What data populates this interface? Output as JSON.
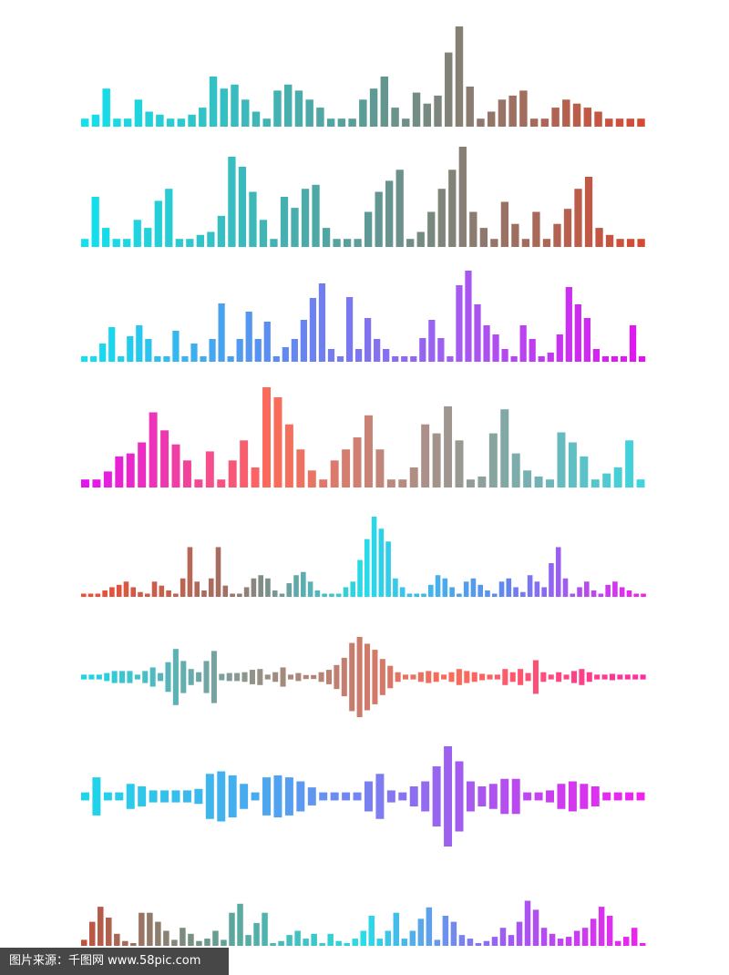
{
  "watermark_text": "图片来源：千图网 www.58pic.com",
  "waveforms": [
    {
      "style": "bottom",
      "colors": [
        "#11e1ee",
        "#5b9c97",
        "#d64a33"
      ],
      "levels": [
        0.08,
        0.12,
        0.38,
        0.08,
        0.08,
        0.27,
        0.15,
        0.12,
        0.08,
        0.08,
        0.12,
        0.19,
        0.5,
        0.38,
        0.42,
        0.27,
        0.15,
        0.08,
        0.36,
        0.42,
        0.36,
        0.27,
        0.19,
        0.08,
        0.08,
        0.08,
        0.27,
        0.38,
        0.5,
        0.19,
        0.08,
        0.34,
        0.23,
        0.31,
        0.74,
        1.0,
        0.4,
        0.08,
        0.15,
        0.27,
        0.31,
        0.36,
        0.08,
        0.08,
        0.19,
        0.27,
        0.23,
        0.19,
        0.15,
        0.08,
        0.08,
        0.08,
        0.08
      ]
    },
    {
      "style": "bottom",
      "colors": [
        "#11e1ee",
        "#5b9c97",
        "#d64a33"
      ],
      "levels": [
        0.08,
        0.5,
        0.19,
        0.08,
        0.08,
        0.27,
        0.19,
        0.46,
        0.58,
        0.08,
        0.08,
        0.12,
        0.15,
        0.31,
        0.9,
        0.8,
        0.55,
        0.27,
        0.08,
        0.5,
        0.39,
        0.58,
        0.62,
        0.19,
        0.08,
        0.08,
        0.08,
        0.35,
        0.55,
        0.66,
        0.77,
        0.08,
        0.15,
        0.35,
        0.58,
        0.77,
        1.0,
        0.35,
        0.19,
        0.08,
        0.45,
        0.23,
        0.08,
        0.35,
        0.08,
        0.23,
        0.38,
        0.58,
        0.7,
        0.19,
        0.12,
        0.08,
        0.08,
        0.08
      ]
    },
    {
      "style": "bottom",
      "colors": [
        "#11e1ee",
        "#5b8df0",
        "#a35cf0",
        "#e313f0"
      ],
      "levels": [
        0.06,
        0.06,
        0.2,
        0.38,
        0.06,
        0.28,
        0.4,
        0.25,
        0.06,
        0.06,
        0.34,
        0.06,
        0.2,
        0.06,
        0.25,
        0.64,
        0.06,
        0.25,
        0.55,
        0.25,
        0.44,
        0.06,
        0.16,
        0.25,
        0.46,
        0.7,
        0.86,
        0.14,
        0.06,
        0.71,
        0.14,
        0.48,
        0.25,
        0.14,
        0.06,
        0.06,
        0.06,
        0.26,
        0.46,
        0.26,
        0.06,
        0.84,
        1.0,
        0.63,
        0.4,
        0.3,
        0.14,
        0.06,
        0.4,
        0.25,
        0.06,
        0.1,
        0.3,
        0.82,
        0.63,
        0.48,
        0.14,
        0.06,
        0.06,
        0.06,
        0.4,
        0.06
      ]
    },
    {
      "style": "bottom",
      "colors": [
        "#e313f0",
        "#fd6a58",
        "#9a9891",
        "#3ed5e0"
      ],
      "levels": [
        0.08,
        0.08,
        0.16,
        0.31,
        0.34,
        0.45,
        0.75,
        0.57,
        0.43,
        0.27,
        0.08,
        0.36,
        0.08,
        0.27,
        0.47,
        0.2,
        1.0,
        0.9,
        0.63,
        0.38,
        0.17,
        0.08,
        0.27,
        0.38,
        0.5,
        0.72,
        0.38,
        0.08,
        0.08,
        0.2,
        0.63,
        0.54,
        0.81,
        0.47,
        0.08,
        0.11,
        0.54,
        0.78,
        0.34,
        0.17,
        0.11,
        0.08,
        0.55,
        0.45,
        0.31,
        0.08,
        0.14,
        0.2,
        0.47,
        0.08
      ]
    },
    {
      "style": "bottom",
      "colors": [
        "#f24c33",
        "#a36f62",
        "#28dce8",
        "#6088f0",
        "#f022ee"
      ],
      "levels": [
        0.04,
        0.04,
        0.04,
        0.08,
        0.12,
        0.15,
        0.19,
        0.12,
        0.06,
        0.04,
        0.19,
        0.14,
        0.08,
        0.04,
        0.23,
        0.62,
        0.19,
        0.08,
        0.23,
        0.62,
        0.14,
        0.04,
        0.04,
        0.12,
        0.23,
        0.27,
        0.23,
        0.08,
        0.04,
        0.17,
        0.27,
        0.31,
        0.19,
        0.08,
        0.04,
        0.04,
        0.04,
        0.12,
        0.19,
        0.46,
        0.72,
        1.0,
        0.85,
        0.69,
        0.23,
        0.12,
        0.04,
        0.04,
        0.04,
        0.15,
        0.27,
        0.23,
        0.12,
        0.04,
        0.19,
        0.23,
        0.15,
        0.08,
        0.04,
        0.19,
        0.23,
        0.12,
        0.06,
        0.27,
        0.19,
        0.12,
        0.42,
        0.62,
        0.23,
        0.04,
        0.12,
        0.19,
        0.08,
        0.04,
        0.15,
        0.19,
        0.12,
        0.08,
        0.04,
        0.04
      ]
    },
    {
      "style": "center",
      "colors": [
        "#1ed6e8",
        "#9d8c7f",
        "#fd6a58",
        "#ff2ca0"
      ],
      "levels": [
        0.06,
        0.06,
        0.06,
        0.1,
        0.15,
        0.15,
        0.15,
        0.06,
        0.15,
        0.24,
        0.1,
        0.37,
        0.7,
        0.4,
        0.2,
        0.12,
        0.4,
        0.65,
        0.08,
        0.1,
        0.1,
        0.12,
        0.18,
        0.2,
        0.06,
        0.12,
        0.24,
        0.06,
        0.1,
        0.05,
        0.05,
        0.12,
        0.18,
        0.3,
        0.48,
        0.85,
        1.0,
        0.83,
        0.68,
        0.45,
        0.28,
        0.12,
        0.06,
        0.06,
        0.12,
        0.15,
        0.12,
        0.06,
        0.12,
        0.2,
        0.15,
        0.12,
        0.08,
        0.06,
        0.06,
        0.2,
        0.12,
        0.2,
        0.1,
        0.42,
        0.12,
        0.06,
        0.12,
        0.06,
        0.15,
        0.2,
        0.12,
        0.06,
        0.06,
        0.08,
        0.06,
        0.06,
        0.06,
        0.06
      ]
    },
    {
      "style": "center",
      "colors": [
        "#1ed6e8",
        "#4ea5f0",
        "#a05ef0",
        "#f022ee"
      ],
      "levels": [
        0.08,
        0.38,
        0.08,
        0.08,
        0.25,
        0.2,
        0.12,
        0.12,
        0.12,
        0.12,
        0.15,
        0.45,
        0.5,
        0.42,
        0.25,
        0.08,
        0.38,
        0.42,
        0.38,
        0.3,
        0.18,
        0.08,
        0.08,
        0.08,
        0.08,
        0.3,
        0.45,
        0.12,
        0.08,
        0.2,
        0.3,
        0.6,
        1.0,
        0.7,
        0.3,
        0.2,
        0.25,
        0.35,
        0.35,
        0.08,
        0.08,
        0.12,
        0.25,
        0.3,
        0.25,
        0.2,
        0.08,
        0.08,
        0.08,
        0.08
      ]
    },
    {
      "style": "bottom",
      "colors": [
        "#c1533e",
        "#5fa398",
        "#28dce8",
        "#9c5df0",
        "#f022ee"
      ],
      "levels": [
        0.1,
        0.4,
        0.65,
        0.47,
        0.2,
        0.08,
        0.04,
        0.55,
        0.55,
        0.4,
        0.25,
        0.1,
        0.3,
        0.2,
        0.08,
        0.12,
        0.25,
        0.1,
        0.55,
        0.7,
        0.18,
        0.38,
        0.55,
        0.04,
        0.08,
        0.18,
        0.25,
        0.12,
        0.2,
        0.04,
        0.2,
        0.08,
        0.04,
        0.12,
        0.25,
        0.5,
        0.12,
        0.25,
        0.55,
        0.12,
        0.25,
        0.45,
        0.64,
        0.1,
        0.5,
        0.4,
        0.18,
        0.12,
        0.04,
        0.08,
        0.15,
        0.3,
        0.18,
        0.4,
        0.75,
        0.6,
        0.3,
        0.2,
        0.12,
        0.15,
        0.25,
        0.3,
        0.45,
        0.65,
        0.5,
        0.08,
        0.15,
        0.3,
        0.04
      ]
    }
  ]
}
